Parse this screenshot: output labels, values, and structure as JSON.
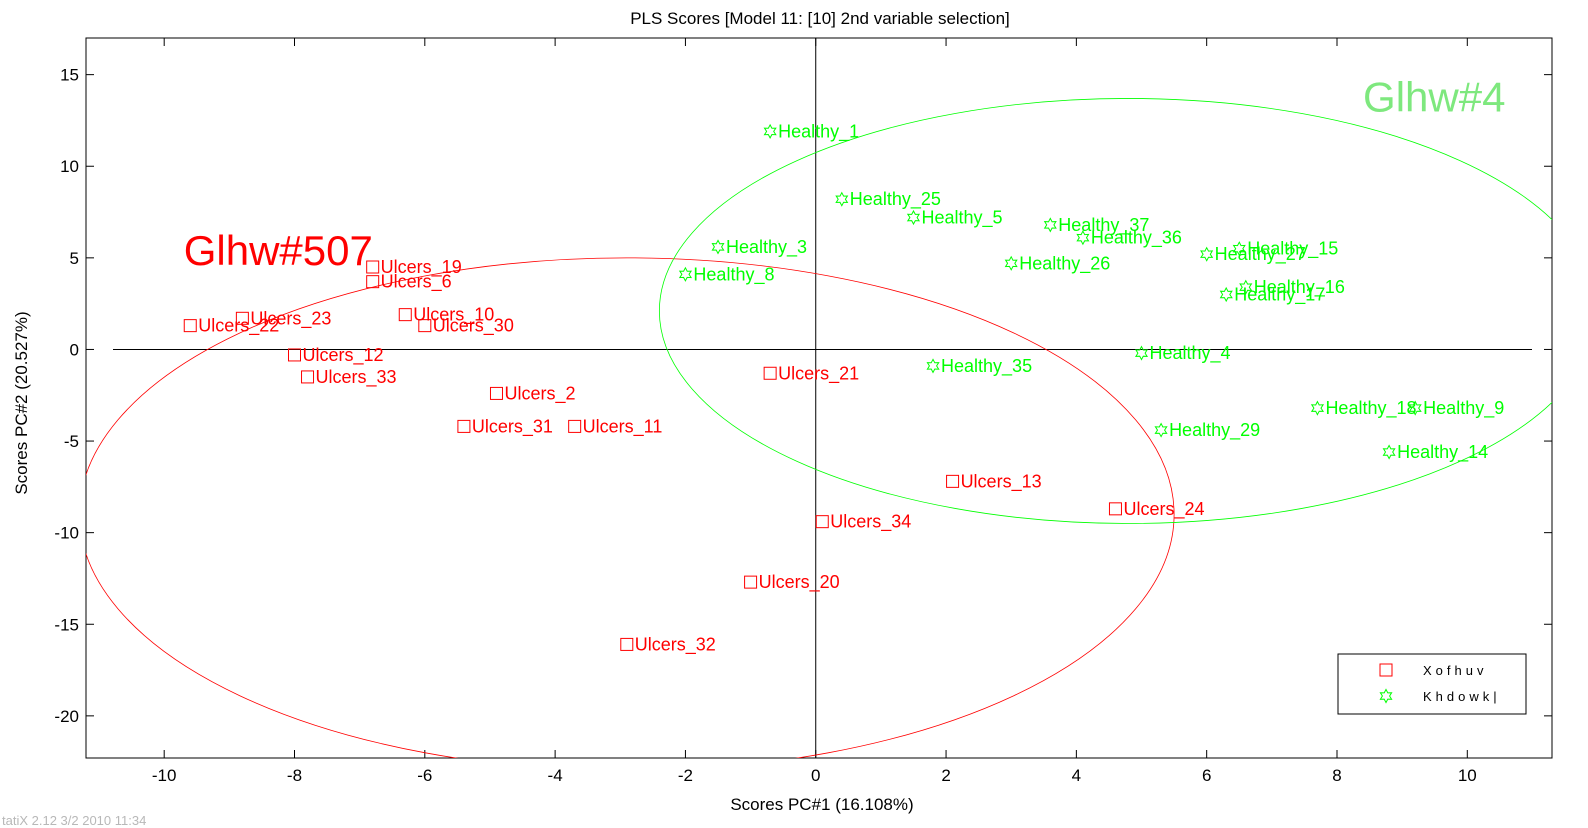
{
  "page": {
    "top_partial_text": "",
    "footer_text": "tatiX 2.12 3/2 2010 11:34"
  },
  "chart_data": {
    "type": "scatter",
    "title": "PLS Scores [Model 11: [10] 2nd variable selection]",
    "xlabel": "Scores PC#1 (16.108%)",
    "ylabel": "Scores PC#2 (20.527%)",
    "xlim": [
      -11.2,
      11.3
    ],
    "ylim": [
      -22.3,
      17
    ],
    "xticks": [
      -10,
      -8,
      -6,
      -4,
      -2,
      0,
      2,
      4,
      6,
      8,
      10
    ],
    "yticks": [
      15,
      10,
      5,
      0,
      -5,
      -10,
      -15,
      -20
    ],
    "grid": false,
    "zero_lines": true,
    "legend_position": "bottom-right",
    "series": [
      {
        "name": "Xofhuv",
        "color": "#ff0000",
        "marker": "square",
        "points": [
          {
            "label": "Ulcers_19",
            "x": -6.8,
            "y": 4.5
          },
          {
            "label": "Ulcers_6",
            "x": -6.8,
            "y": 3.7
          },
          {
            "label": "Ulcers_22",
            "x": -9.6,
            "y": 1.3
          },
          {
            "label": "Ulcers_23",
            "x": -8.8,
            "y": 1.7
          },
          {
            "label": "Ulcers_10",
            "x": -6.3,
            "y": 1.9
          },
          {
            "label": "Ulcers_30",
            "x": -6.0,
            "y": 1.3
          },
          {
            "label": "Ulcers_12",
            "x": -8.0,
            "y": -0.3
          },
          {
            "label": "Ulcers_33",
            "x": -7.8,
            "y": -1.5
          },
          {
            "label": "Ulcers_2",
            "x": -4.9,
            "y": -2.4
          },
          {
            "label": "Ulcers_31",
            "x": -5.4,
            "y": -4.2
          },
          {
            "label": "Ulcers_11",
            "x": -3.7,
            "y": -4.2
          },
          {
            "label": "Ulcers_21",
            "x": -0.7,
            "y": -1.3
          },
          {
            "label": "Ulcers_13",
            "x": 2.1,
            "y": -7.2
          },
          {
            "label": "Ulcers_24",
            "x": 4.6,
            "y": -8.7
          },
          {
            "label": "Ulcers_34",
            "x": 0.1,
            "y": -9.4
          },
          {
            "label": "Ulcers_20",
            "x": -1.0,
            "y": -12.7
          },
          {
            "label": "Ulcers_32",
            "x": -2.9,
            "y": -16.1
          }
        ]
      },
      {
        "name": "Khdowk|",
        "color": "#00ff00",
        "marker": "star",
        "points": [
          {
            "label": "Healthy_1",
            "x": -0.7,
            "y": 11.9
          },
          {
            "label": "Healthy_25",
            "x": 0.4,
            "y": 8.2
          },
          {
            "label": "Healthy_5",
            "x": 1.5,
            "y": 7.2
          },
          {
            "label": "Healthy_37",
            "x": 3.6,
            "y": 6.8
          },
          {
            "label": "Healthy_36",
            "x": 4.1,
            "y": 6.1
          },
          {
            "label": "Healthy_3",
            "x": -1.5,
            "y": 5.6
          },
          {
            "label": "Healthy_8",
            "x": -2.0,
            "y": 4.1
          },
          {
            "label": "Healthy_26",
            "x": 3.0,
            "y": 4.7
          },
          {
            "label": "Healthy_27",
            "x": 6.0,
            "y": 5.2
          },
          {
            "label": "Healthy_15",
            "x": 6.5,
            "y": 5.5
          },
          {
            "label": "Healthy_16",
            "x": 6.6,
            "y": 3.4
          },
          {
            "label": "Healthy_17",
            "x": 6.3,
            "y": 3.0
          },
          {
            "label": "Healthy_4",
            "x": 5.0,
            "y": -0.2
          },
          {
            "label": "Healthy_35",
            "x": 1.8,
            "y": -0.9
          },
          {
            "label": "Healthy_29",
            "x": 5.3,
            "y": -4.4
          },
          {
            "label": "Healthy_18",
            "x": 7.7,
            "y": -3.2
          },
          {
            "label": "Healthy_9",
            "x": 9.2,
            "y": -3.2
          },
          {
            "label": "Healthy_14",
            "x": 8.8,
            "y": -5.6
          }
        ]
      }
    ],
    "ellipses": [
      {
        "series": "Xofhuv",
        "cx": -2.9,
        "cy": -9.0,
        "rx": 8.4,
        "ry": 14.0,
        "color": "#ff0000"
      },
      {
        "series": "Khdowk|",
        "cx": 4.8,
        "cy": 2.1,
        "rx": 7.2,
        "ry": 11.6,
        "color": "#00ff00"
      }
    ],
    "annotations": [
      {
        "text": "Glhw#507",
        "x": -9.7,
        "y": 4.6,
        "color": "#ff0000"
      },
      {
        "text": "Glhw#4",
        "x": 8.4,
        "y": 13.0,
        "color": "#7ee87e"
      }
    ]
  }
}
